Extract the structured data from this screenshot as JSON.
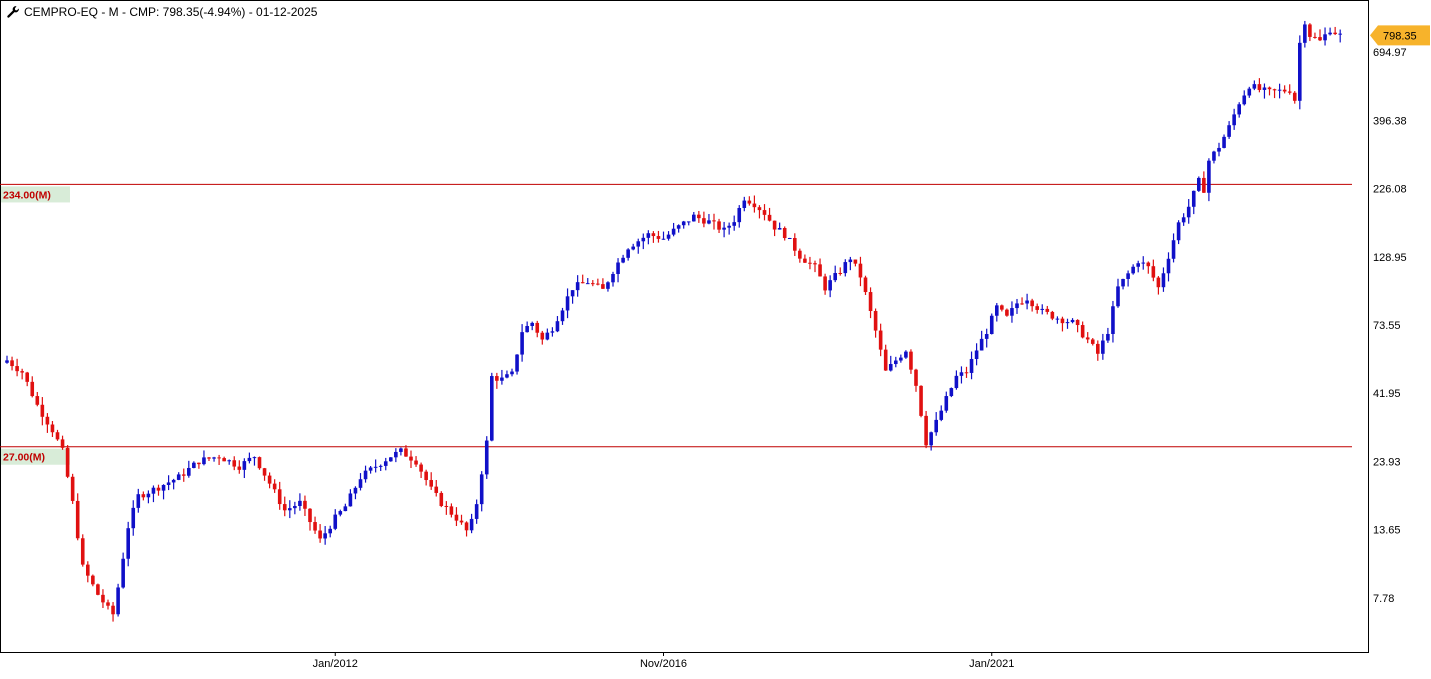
{
  "header": {
    "title": "CEMPRO-EQ - M - CMP: 798.35(-4.94%) - 01-12-2025",
    "icon": "wrench-icon"
  },
  "colors": {
    "up": "#1010c8",
    "down": "#e01010",
    "level_line": "#c00000",
    "level_label_bg": "#d8ecd8",
    "last_price_bg": "#f7b32b",
    "frame": "#000000"
  },
  "chart_data": {
    "type": "candlestick",
    "interval": "monthly",
    "scale": "log",
    "ylim": [
      5.5,
      1000
    ],
    "grid": false,
    "price_ticks": [
      "694.97",
      "396.38",
      "226.08",
      "128.95",
      "73.55",
      "41.95",
      "23.93",
      "13.65",
      "7.78"
    ],
    "price_tick_values": [
      694.97,
      396.38,
      226.08,
      128.95,
      73.55,
      41.95,
      23.93,
      13.65,
      7.78
    ],
    "time_labels": [
      "Jan/2012",
      "Nov/2016",
      "Jan/2021"
    ],
    "levels": [
      {
        "label": "234.00(M)",
        "value": 234.0
      },
      {
        "label": "27.00(M)",
        "value": 27.0
      }
    ],
    "last_price": {
      "label": "798.35",
      "value": 798.35
    },
    "anchors": [
      {
        "i": 0,
        "p": 55
      },
      {
        "i": 3,
        "p": 50
      },
      {
        "i": 6,
        "p": 38
      },
      {
        "i": 9,
        "p": 31
      },
      {
        "i": 11,
        "p": 26
      },
      {
        "i": 13,
        "p": 17
      },
      {
        "i": 15,
        "p": 10
      },
      {
        "i": 18,
        "p": 8
      },
      {
        "i": 20,
        "p": 7.1
      },
      {
        "i": 21,
        "p": 6.8
      },
      {
        "i": 22,
        "p": 8.5
      },
      {
        "i": 24,
        "p": 14
      },
      {
        "i": 26,
        "p": 18
      },
      {
        "i": 29,
        "p": 19
      },
      {
        "i": 34,
        "p": 21
      },
      {
        "i": 38,
        "p": 24
      },
      {
        "i": 42,
        "p": 25
      },
      {
        "i": 46,
        "p": 23
      },
      {
        "i": 49,
        "p": 25
      },
      {
        "i": 52,
        "p": 20
      },
      {
        "i": 55,
        "p": 16
      },
      {
        "i": 58,
        "p": 17
      },
      {
        "i": 62,
        "p": 12.5
      },
      {
        "i": 65,
        "p": 15
      },
      {
        "i": 67,
        "p": 16.5
      },
      {
        "i": 70,
        "p": 21
      },
      {
        "i": 73,
        "p": 23
      },
      {
        "i": 76,
        "p": 25
      },
      {
        "i": 78,
        "p": 26
      },
      {
        "i": 81,
        "p": 24
      },
      {
        "i": 84,
        "p": 19
      },
      {
        "i": 86,
        "p": 17
      },
      {
        "i": 89,
        "p": 15
      },
      {
        "i": 91,
        "p": 13.5
      },
      {
        "i": 92,
        "p": 14.5
      },
      {
        "i": 93,
        "p": 17
      },
      {
        "i": 94,
        "p": 22
      },
      {
        "i": 95,
        "p": 28
      },
      {
        "i": 96,
        "p": 48
      },
      {
        "i": 98,
        "p": 47
      },
      {
        "i": 100,
        "p": 49
      },
      {
        "i": 102,
        "p": 70
      },
      {
        "i": 104,
        "p": 75
      },
      {
        "i": 106,
        "p": 65
      },
      {
        "i": 108,
        "p": 72
      },
      {
        "i": 110,
        "p": 85
      },
      {
        "i": 112,
        "p": 100
      },
      {
        "i": 115,
        "p": 105
      },
      {
        "i": 118,
        "p": 98
      },
      {
        "i": 120,
        "p": 115
      },
      {
        "i": 123,
        "p": 140
      },
      {
        "i": 127,
        "p": 155
      },
      {
        "i": 130,
        "p": 150
      },
      {
        "i": 133,
        "p": 165
      },
      {
        "i": 136,
        "p": 180
      },
      {
        "i": 139,
        "p": 172
      },
      {
        "i": 142,
        "p": 160
      },
      {
        "i": 144,
        "p": 175
      },
      {
        "i": 146,
        "p": 210
      },
      {
        "i": 148,
        "p": 200
      },
      {
        "i": 150,
        "p": 185
      },
      {
        "i": 152,
        "p": 165
      },
      {
        "i": 154,
        "p": 155
      },
      {
        "i": 157,
        "p": 130
      },
      {
        "i": 160,
        "p": 118
      },
      {
        "i": 162,
        "p": 100
      },
      {
        "i": 165,
        "p": 115
      },
      {
        "i": 167,
        "p": 128
      },
      {
        "i": 169,
        "p": 110
      },
      {
        "i": 170,
        "p": 95
      },
      {
        "i": 172,
        "p": 70
      },
      {
        "i": 174,
        "p": 50
      },
      {
        "i": 176,
        "p": 55
      },
      {
        "i": 178,
        "p": 60
      },
      {
        "i": 180,
        "p": 45
      },
      {
        "i": 182,
        "p": 28
      },
      {
        "i": 184,
        "p": 33
      },
      {
        "i": 186,
        "p": 40
      },
      {
        "i": 188,
        "p": 48
      },
      {
        "i": 190,
        "p": 50
      },
      {
        "i": 192,
        "p": 60
      },
      {
        "i": 194,
        "p": 70
      },
      {
        "i": 196,
        "p": 85
      },
      {
        "i": 198,
        "p": 78
      },
      {
        "i": 200,
        "p": 88
      },
      {
        "i": 202,
        "p": 92
      },
      {
        "i": 205,
        "p": 82
      },
      {
        "i": 208,
        "p": 78
      },
      {
        "i": 211,
        "p": 75
      },
      {
        "i": 214,
        "p": 65
      },
      {
        "i": 216,
        "p": 58
      },
      {
        "i": 218,
        "p": 70
      },
      {
        "i": 220,
        "p": 100
      },
      {
        "i": 222,
        "p": 112
      },
      {
        "i": 224,
        "p": 125
      },
      {
        "i": 226,
        "p": 118
      },
      {
        "i": 228,
        "p": 100
      },
      {
        "i": 230,
        "p": 130
      },
      {
        "i": 232,
        "p": 170
      },
      {
        "i": 234,
        "p": 195
      },
      {
        "i": 236,
        "p": 240
      },
      {
        "i": 237,
        "p": 225
      },
      {
        "i": 238,
        "p": 285
      },
      {
        "i": 240,
        "p": 320
      },
      {
        "i": 242,
        "p": 375
      },
      {
        "i": 244,
        "p": 460
      },
      {
        "i": 246,
        "p": 530
      },
      {
        "i": 248,
        "p": 510
      },
      {
        "i": 250,
        "p": 500
      },
      {
        "i": 252,
        "p": 505
      },
      {
        "i": 254,
        "p": 510
      },
      {
        "i": 255,
        "p": 470
      },
      {
        "i": 256,
        "p": 750
      },
      {
        "i": 257,
        "p": 900
      },
      {
        "i": 258,
        "p": 800
      },
      {
        "i": 260,
        "p": 760
      },
      {
        "i": 262,
        "p": 840
      },
      {
        "i": 264,
        "p": 798.35
      }
    ]
  }
}
